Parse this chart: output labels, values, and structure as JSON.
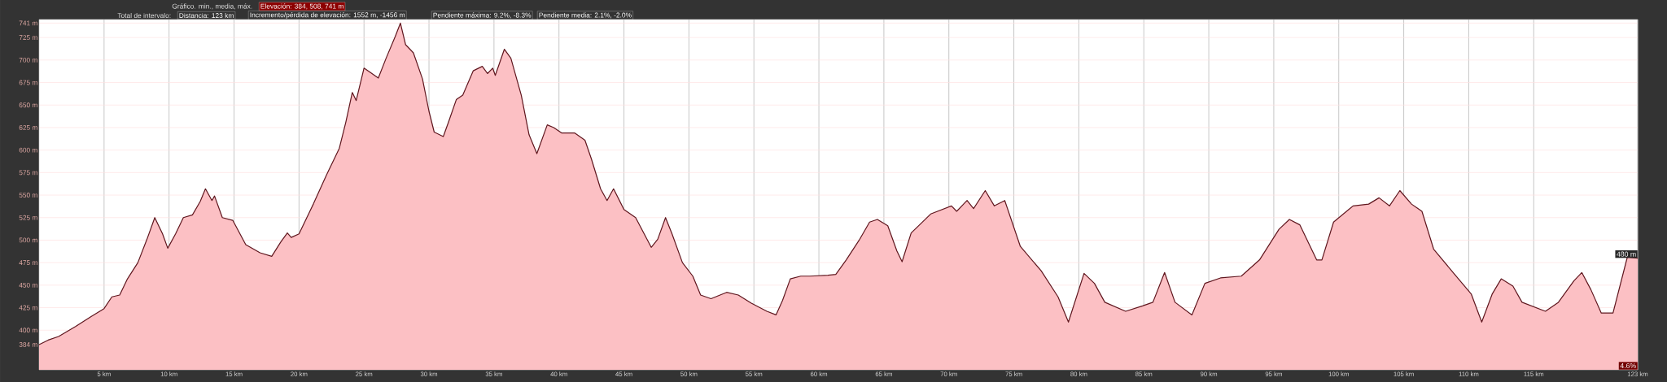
{
  "chart_data": {
    "type": "area",
    "x": [
      0,
      0.7,
      1.5,
      2.8,
      4.0,
      5.0,
      5.6,
      6.2,
      6.8,
      7.6,
      8.3,
      8.9,
      9.5,
      9.9,
      10.5,
      11.1,
      11.8,
      12.4,
      12.8,
      13.3,
      13.5,
      14.1,
      14.9,
      15.9,
      17.0,
      17.9,
      18.6,
      19.1,
      19.4,
      20.0,
      21.1,
      22.1,
      23.1,
      23.6,
      24.1,
      24.4,
      25.0,
      25.5,
      26.1,
      26.7,
      27.4,
      27.8,
      28.2,
      28.8,
      29.5,
      30.0,
      30.4,
      31.1,
      31.5,
      32.1,
      32.6,
      33.4,
      34.1,
      34.5,
      34.9,
      35.1,
      35.8,
      36.3,
      37.1,
      37.7,
      38.3,
      39.1,
      39.6,
      40.2,
      41.2,
      42.0,
      42.5,
      43.2,
      43.7,
      44.2,
      45.0,
      45.9,
      47.1,
      47.6,
      48.2,
      48.7,
      49.5,
      50.3,
      50.9,
      51.7,
      52.9,
      53.8,
      54.8,
      56.0,
      56.7,
      57.2,
      57.8,
      58.6,
      59.3,
      60.7,
      61.3,
      62.1,
      63.1,
      63.9,
      64.5,
      65.3,
      66.0,
      66.4,
      67.1,
      68.6,
      70.2,
      70.6,
      71.4,
      71.9,
      72.8,
      73.5,
      74.3,
      75.5,
      77.1,
      78.4,
      79.2,
      80.4,
      81.2,
      82.0,
      83.6,
      84.9,
      85.7,
      86.6,
      87.4,
      88.7,
      89.7,
      90.9,
      92.5,
      93.9,
      95.4,
      96.2,
      97.0,
      98.3,
      98.7,
      99.6,
      101.1,
      102.3,
      103.1,
      103.9,
      104.7,
      105.6,
      106.4,
      107.3,
      108.8,
      110.2,
      111.0,
      111.8,
      112.5,
      113.4,
      114.1,
      115.9,
      116.9,
      118.1,
      118.7,
      119.4,
      120.2,
      121.1,
      122.2,
      123
    ],
    "series": [
      {
        "color": "#fcc0c4",
        "values": [
          384,
          389,
          393,
          404,
          415,
          424,
          437,
          439,
          457,
          475,
          501,
          525,
          507,
          491,
          507,
          525,
          528,
          543,
          557,
          544,
          549,
          525,
          522,
          495,
          486,
          482,
          498,
          508,
          503,
          507,
          540,
          572,
          602,
          631,
          664,
          655,
          691,
          686,
          680,
          702,
          726,
          741,
          717,
          708,
          679,
          643,
          620,
          615,
          631,
          656,
          661,
          688,
          693,
          685,
          691,
          683,
          712,
          702,
          661,
          617,
          596,
          628,
          625,
          619,
          619,
          611,
          590,
          557,
          544,
          557,
          534,
          525,
          492,
          501,
          525,
          507,
          475,
          460,
          439,
          435,
          442,
          439,
          430,
          421,
          417,
          433,
          457,
          460,
          460,
          461,
          462,
          478,
          500,
          520,
          523,
          516,
          488,
          476,
          508,
          529,
          538,
          532,
          544,
          535,
          555,
          538,
          544,
          493,
          466,
          437,
          409,
          463,
          452,
          431,
          421,
          427,
          431,
          464,
          431,
          417,
          452,
          458,
          460,
          478,
          512,
          523,
          517,
          478,
          478,
          520,
          538,
          540,
          547,
          538,
          555,
          540,
          532,
          490,
          464,
          440,
          409,
          440,
          457,
          449,
          431,
          421,
          431,
          455,
          464,
          445,
          419,
          419,
          481,
          480
        ]
      }
    ],
    "xlim": [
      0,
      123
    ],
    "xticks": [
      {
        "value": 5,
        "label": "5 km"
      },
      {
        "value": 10,
        "label": "10 km"
      },
      {
        "value": 15,
        "label": "15 km"
      },
      {
        "value": 20,
        "label": "20 km"
      },
      {
        "value": 25,
        "label": "25 km"
      },
      {
        "value": 30,
        "label": "30 km"
      },
      {
        "value": 35,
        "label": "35 km"
      },
      {
        "value": 40,
        "label": "40 km"
      },
      {
        "value": 45,
        "label": "45 km"
      },
      {
        "value": 50,
        "label": "50 km"
      },
      {
        "value": 55,
        "label": "55 km"
      },
      {
        "value": 60,
        "label": "60 km"
      },
      {
        "value": 65,
        "label": "65 km"
      },
      {
        "value": 70,
        "label": "70 km"
      },
      {
        "value": 75,
        "label": "75 km"
      },
      {
        "value": 80,
        "label": "80 km"
      },
      {
        "value": 85,
        "label": "85 km"
      },
      {
        "value": 90,
        "label": "90 km"
      },
      {
        "value": 95,
        "label": "95 km"
      },
      {
        "value": 100,
        "label": "100 km"
      },
      {
        "value": 105,
        "label": "105 km"
      },
      {
        "value": 110,
        "label": "110 km"
      },
      {
        "value": 115,
        "label": "115 km"
      },
      {
        "value": 123,
        "label": "123 km"
      }
    ],
    "ylim": [
      356,
      745
    ],
    "yticks": [
      {
        "value": 384,
        "label": "384 m"
      },
      {
        "value": 400,
        "label": "400 m"
      },
      {
        "value": 425,
        "label": "425 m"
      },
      {
        "value": 450,
        "label": "450 m"
      },
      {
        "value": 475,
        "label": "475 m"
      },
      {
        "value": 500,
        "label": "500 m"
      },
      {
        "value": 525,
        "label": "525 m"
      },
      {
        "value": 550,
        "label": "550 m"
      },
      {
        "value": 575,
        "label": "575 m"
      },
      {
        "value": 600,
        "label": "600 m"
      },
      {
        "value": 625,
        "label": "625 m"
      },
      {
        "value": 650,
        "label": "650 m"
      },
      {
        "value": 675,
        "label": "675 m"
      },
      {
        "value": 700,
        "label": "700 m"
      },
      {
        "value": 725,
        "label": "725 m"
      },
      {
        "value": 741,
        "label": "741 m"
      }
    ],
    "grid": true,
    "annotations": [
      "Gráfico. min., media, máx.",
      "Elevación: 384, 508, 741 m",
      "Total de intervalo:",
      "Distancia: 123 km",
      "Incremento/pérdida de elevación: 1552 m, -1456 m",
      "Pendiente máxima: 9.2%, -8.3%",
      "Pendiente media: 2.1%, -2.0%",
      {
        "text": "480 m",
        "x": 123,
        "y": 480
      },
      "4.6%"
    ]
  }
}
